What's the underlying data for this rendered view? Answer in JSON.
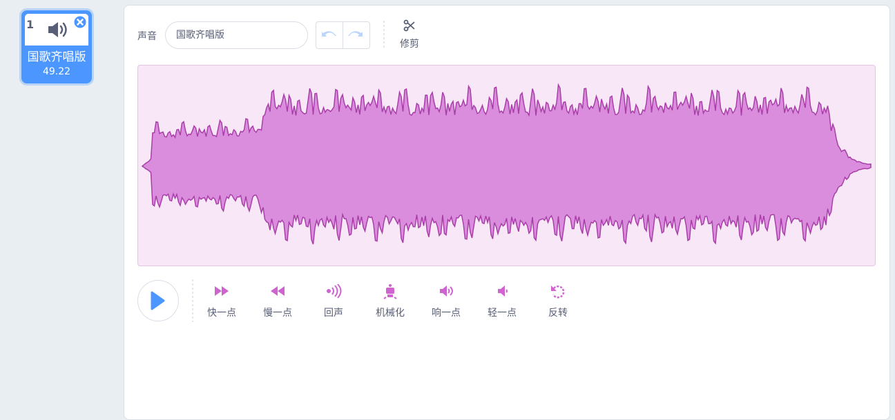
{
  "sprite_list": {
    "items": [
      {
        "number": "1",
        "name": "国歌齐唱版",
        "duration": 49.22
      }
    ]
  },
  "editor": {
    "sound_label": "声音",
    "sound_name": "国歌齐唱版",
    "trim_label": "修剪",
    "effects": [
      "快一点",
      "慢一点",
      "回声",
      "机械化",
      "响一点",
      "轻一点",
      "反转"
    ]
  }
}
